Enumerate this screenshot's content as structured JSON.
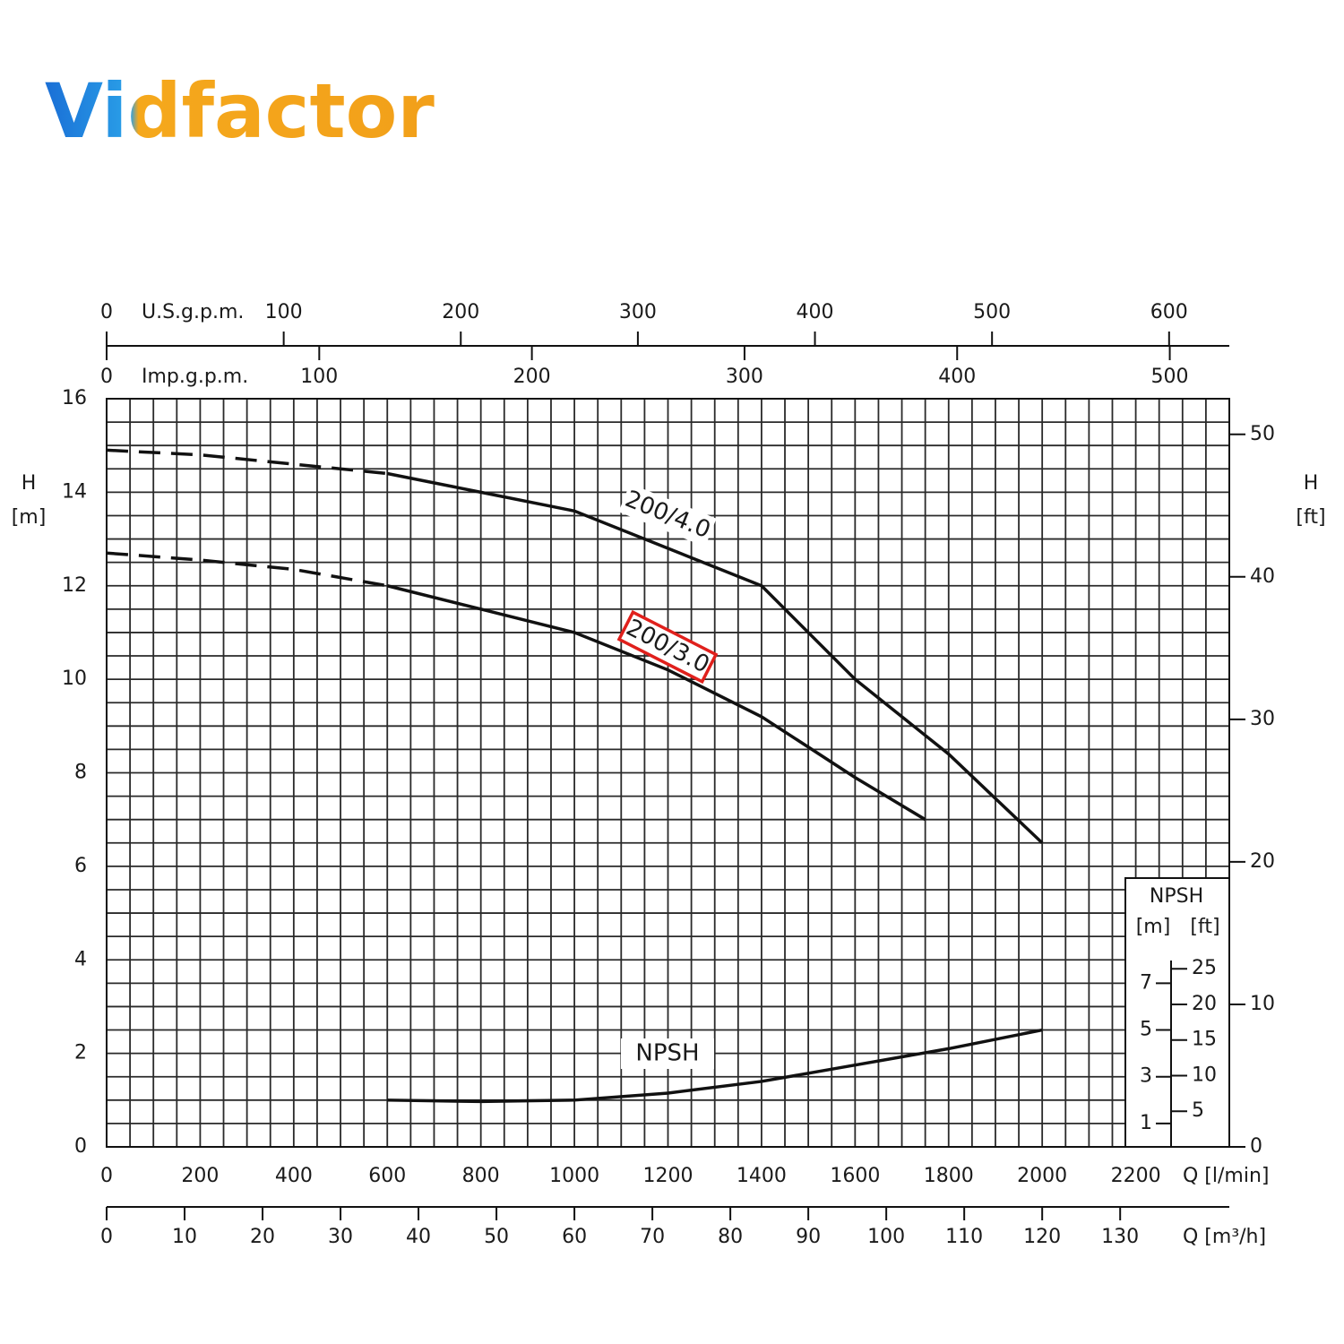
{
  "logo": "Vidfactor",
  "chart_data": {
    "type": "line",
    "xlabel": "Q [l/min]",
    "ylabel": "H",
    "ylabel_unit": "[m]",
    "xlim": [
      0,
      2400
    ],
    "xticks": [
      0,
      200,
      400,
      600,
      800,
      1000,
      1200,
      1400,
      1600,
      1800,
      2000,
      2200
    ],
    "ylim": [
      0,
      16
    ],
    "yticks": [
      0,
      2,
      4,
      6,
      8,
      10,
      12,
      14,
      16
    ],
    "grid": true,
    "y2label": "H",
    "y2label_unit": "[ft]",
    "y2lim": [
      0,
      52.5
    ],
    "y2ticks": [
      0,
      10,
      20,
      30,
      40,
      50
    ],
    "x2label": "Q [m³/h]",
    "x2lim": [
      0,
      144
    ],
    "x2ticks": [
      0,
      10,
      20,
      30,
      40,
      50,
      60,
      70,
      80,
      90,
      100,
      110,
      120,
      130
    ],
    "x_top_us": {
      "label": "U.S.g.p.m.",
      "lim": [
        0,
        634
      ],
      "ticks": [
        0,
        100,
        200,
        300,
        400,
        500,
        600
      ]
    },
    "x_top_imp": {
      "label": "Imp.g.p.m.",
      "lim": [
        0,
        528
      ],
      "ticks": [
        0,
        100,
        200,
        300,
        400,
        500
      ]
    },
    "npsh_axis": {
      "title": "NPSH",
      "unit_m": "[m]",
      "unit_ft": "[ft]",
      "mlim": [
        0,
        32
      ],
      "mticks": [
        1,
        3,
        5,
        7
      ],
      "ftlim": [
        0,
        105
      ],
      "ftticks": [
        5,
        10,
        15,
        20,
        25
      ]
    },
    "series": [
      {
        "name": "200/4.0",
        "color": "#111111",
        "dashed_below": 600,
        "x": [
          0,
          200,
          400,
          600,
          800,
          1000,
          1200,
          1400,
          1600,
          1800,
          2000
        ],
        "values": [
          14.9,
          14.8,
          14.6,
          14.4,
          14.0,
          13.6,
          12.8,
          12.0,
          10.0,
          8.4,
          6.5
        ]
      },
      {
        "name": "200/3.0",
        "color": "#111111",
        "dashed_below": 600,
        "highlight": "#e0201c",
        "x": [
          0,
          200,
          400,
          600,
          800,
          1000,
          1200,
          1400,
          1600,
          1750
        ],
        "values": [
          12.7,
          12.55,
          12.35,
          12.0,
          11.5,
          11.0,
          10.2,
          9.2,
          7.9,
          7.0
        ]
      },
      {
        "name": "NPSH",
        "color": "#111111",
        "axis": "npsh",
        "x": [
          600,
          800,
          1000,
          1200,
          1400,
          1600,
          1800,
          2000
        ],
        "values": [
          2.0,
          1.94,
          2.0,
          2.3,
          2.8,
          3.5,
          4.2,
          5.0
        ]
      }
    ]
  }
}
